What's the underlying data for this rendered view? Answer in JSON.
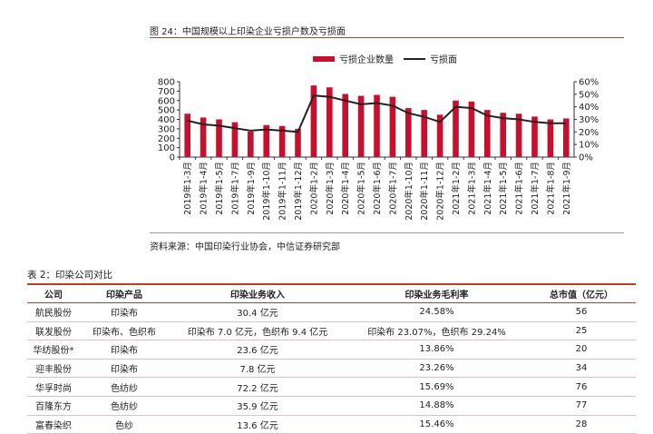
{
  "figure": {
    "title": "图 24：中国规模以上印染企业亏损户数及亏损面",
    "source": "资料来源：中国印染行业协会，中信证券研究部"
  },
  "chart_data": {
    "type": "bar",
    "categories": [
      "2019年1-3月",
      "2019年1-4月",
      "2019年1-5月",
      "2019年1-7月",
      "2019年1-9月",
      "2019年1-10月",
      "2019年1-11月",
      "2019年1-12月",
      "2020年1-2月",
      "2020年1-3月",
      "2020年1-4月",
      "2020年1-5月",
      "2020年1-6月",
      "2020年1-7月",
      "2020年1-10月",
      "2020年1-11月",
      "2020年1-12月",
      "2021年1-2月",
      "2021年1-3月",
      "2021年1-4月",
      "2021年1-5月",
      "2021年1-6月",
      "2021年1-7月",
      "2021年1-8月",
      "2021年1-9月"
    ],
    "series": [
      {
        "name": "亏损企业数量",
        "type": "bar",
        "axis": "left",
        "color": "#c8102e",
        "values": [
          460,
          420,
          400,
          370,
          270,
          340,
          330,
          300,
          760,
          740,
          670,
          650,
          660,
          640,
          520,
          500,
          450,
          600,
          590,
          500,
          470,
          460,
          430,
          400,
          410
        ]
      },
      {
        "name": "亏损面",
        "type": "line",
        "axis": "right",
        "color": "#222222",
        "values": [
          29,
          26,
          25,
          23,
          21,
          22,
          21,
          20,
          49,
          48,
          45,
          42,
          43,
          41,
          35,
          32,
          28,
          40,
          39,
          33,
          31,
          30,
          28,
          27,
          27
        ]
      }
    ],
    "y_left": {
      "min": 0,
      "max": 800,
      "ticks": [
        0,
        100,
        200,
        300,
        400,
        500,
        600,
        700,
        800
      ]
    },
    "y_right": {
      "min": 0,
      "max": 60,
      "ticks": [
        "0%",
        "10%",
        "20%",
        "30%",
        "40%",
        "50%",
        "60%"
      ]
    },
    "legend_position": "top-center",
    "grid": false
  },
  "table": {
    "title": "表 2：印染公司对比",
    "headers": [
      "公司",
      "印染产品",
      "印染业务收入",
      "印染业务毛利率",
      "总市值（亿元）"
    ],
    "rows": [
      [
        "航民股份",
        "印染布",
        "30.4 亿元",
        "24.58%",
        "56"
      ],
      [
        "联发股份",
        "印染布、色织布",
        "印染布 7.0 亿元，色织布 9.4 亿元",
        "印染布 23.07%，色织布 29.24%",
        "25"
      ],
      [
        "华纺股份*",
        "印染布",
        "23.6 亿元",
        "13.86%",
        "20"
      ],
      [
        "迎丰股份",
        "印染布",
        "7.8 亿元",
        "23.26%",
        "34"
      ],
      [
        "华孚时尚",
        "色纺纱",
        "72.2 亿元",
        "15.69%",
        "76"
      ],
      [
        "百隆东方",
        "色纺纱",
        "35.9 亿元",
        "14.88%",
        "77"
      ],
      [
        "富春染织",
        "色纱",
        "13.6 亿元",
        "15.46%",
        "28"
      ]
    ]
  }
}
